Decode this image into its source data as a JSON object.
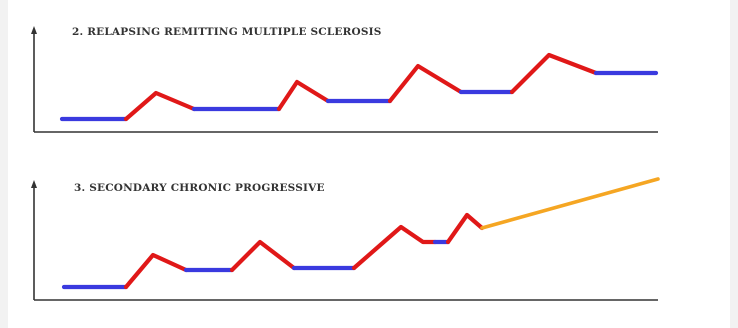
{
  "panels": [
    {
      "title": "2. RELAPSING REMITTING MULTIPLE SCLEROSIS",
      "segments": [
        {
          "phase": "remission",
          "color": "#3a3adf"
        },
        {
          "phase": "relapse",
          "color": "#e01818"
        },
        {
          "phase": "remission",
          "color": "#3a3adf"
        },
        {
          "phase": "relapse",
          "color": "#e01818"
        },
        {
          "phase": "remission",
          "color": "#3a3adf"
        },
        {
          "phase": "relapse",
          "color": "#e01818"
        },
        {
          "phase": "remission",
          "color": "#3a3adf"
        },
        {
          "phase": "relapse",
          "color": "#e01818"
        },
        {
          "phase": "remission",
          "color": "#3a3adf"
        }
      ]
    },
    {
      "title": "3. SECONDARY CHRONIC PROGRESSIVE",
      "segments": [
        {
          "phase": "remission",
          "color": "#3a3adf"
        },
        {
          "phase": "relapse",
          "color": "#e01818"
        },
        {
          "phase": "remission",
          "color": "#3a3adf"
        },
        {
          "phase": "relapse",
          "color": "#e01818"
        },
        {
          "phase": "remission",
          "color": "#3a3adf"
        },
        {
          "phase": "relapse",
          "color": "#e01818"
        },
        {
          "phase": "remission",
          "color": "#3a3adf"
        },
        {
          "phase": "relapse",
          "color": "#e01818"
        },
        {
          "phase": "progression",
          "color": "#f5a623"
        }
      ]
    }
  ],
  "colors": {
    "axis": "#333333",
    "remission": "#3a3adf",
    "relapse": "#e01818",
    "progression": "#f5a623"
  }
}
